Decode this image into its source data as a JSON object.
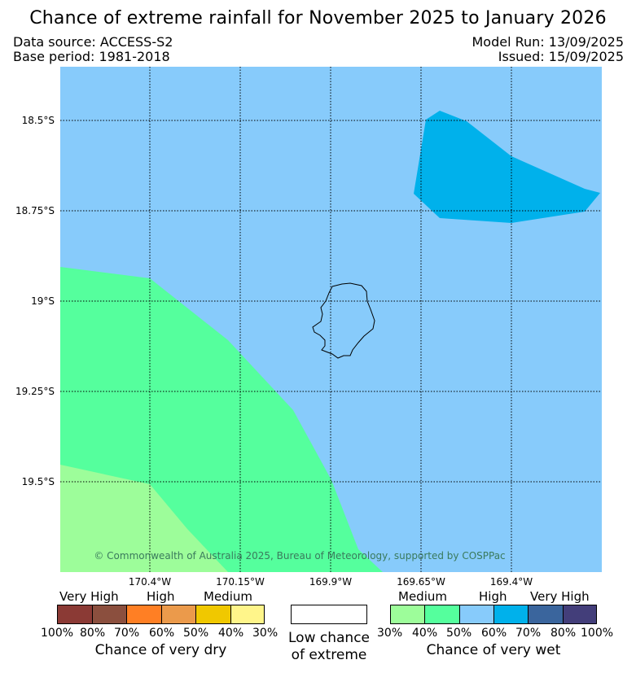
{
  "title": "Chance of extreme rainfall for November 2025 to January 2026",
  "data_source": "Data source: ACCESS-S2",
  "base_period": "Base period: 1981-2018",
  "model_run": "Model Run: 13/09/2025",
  "issued": "Issued: 15/09/2025",
  "copyright": "© Commonwealth of Australia 2025, Bureau of Meteorology, supported by COSPPac",
  "lat_labels": [
    "18.5°S",
    "18.75°S",
    "19°S",
    "19.25°S",
    "19.5°S"
  ],
  "lon_labels": [
    "170.4°W",
    "170.15°W",
    "169.9°W",
    "169.65°W",
    "169.4°W"
  ],
  "colors": {
    "high_wet": "#87cbfb",
    "very_high_wet": "#00b1eb",
    "medium_wet": "#55ff9d",
    "medium_wet_light": "#9dfd9a"
  },
  "legend": {
    "dry": {
      "headers": [
        "Very High",
        "High",
        "Medium"
      ],
      "ticks": [
        "100%",
        "80%",
        "70%",
        "60%",
        "50%",
        "40%",
        "30%"
      ],
      "colors": [
        "#8b3a35",
        "#8b4f3e",
        "#ff7f24",
        "#eb9a4b",
        "#f0c800",
        "#fff58a"
      ],
      "caption": "Chance of very dry"
    },
    "neutral": {
      "caption_line1": "Low chance",
      "caption_line2": "of extreme"
    },
    "wet": {
      "headers": [
        "Medium",
        "High",
        "Very High"
      ],
      "ticks": [
        "30%",
        "40%",
        "50%",
        "60%",
        "70%",
        "80%",
        "100%"
      ],
      "colors": [
        "#9dfd9a",
        "#55ff9d",
        "#87cbfb",
        "#00b1eb",
        "#3a659d",
        "#433e7a"
      ],
      "caption": "Chance of very wet"
    }
  }
}
